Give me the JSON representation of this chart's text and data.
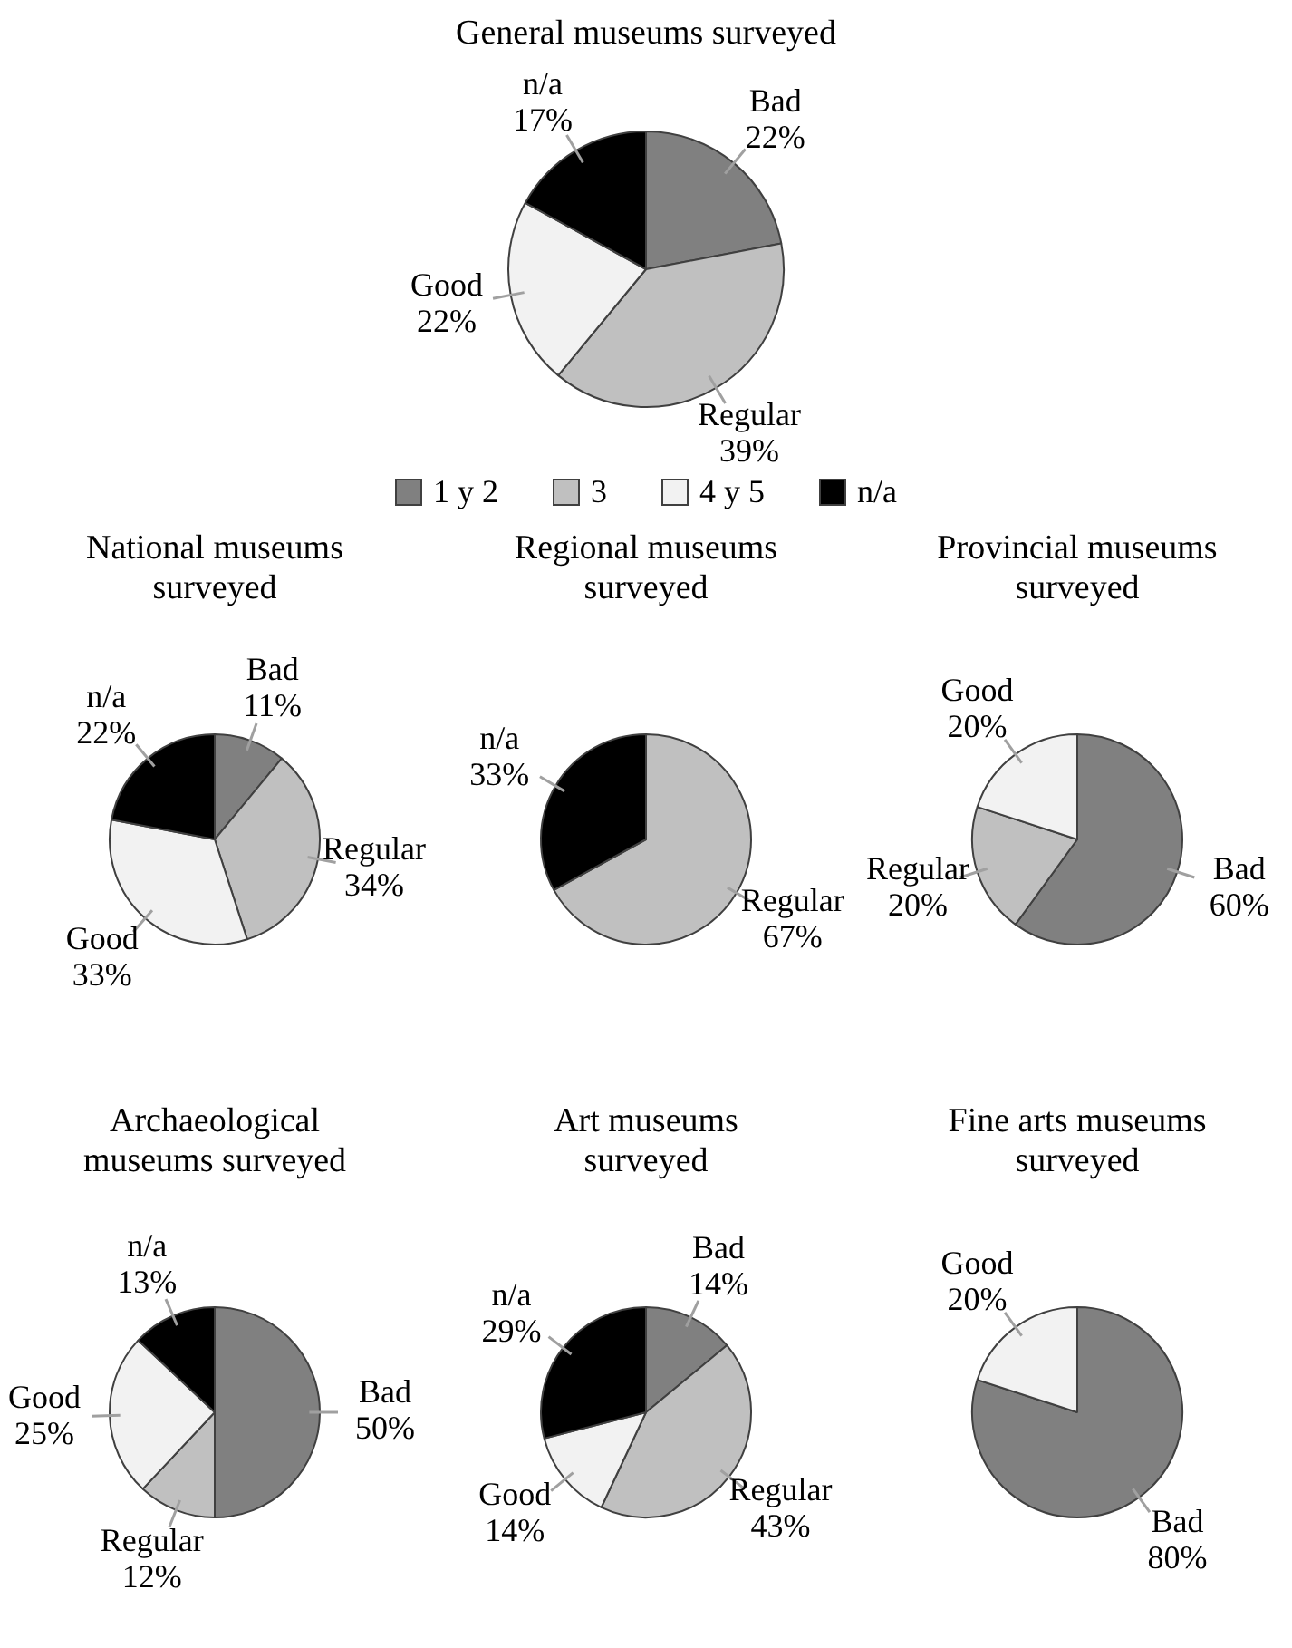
{
  "chart_data": [
    {
      "type": "pie",
      "title": "General museums surveyed",
      "categories": [
        "1 y 2",
        "3",
        "4 y 5",
        "n/a"
      ],
      "values": [
        22,
        39,
        22,
        17
      ],
      "colors": [
        "#808080",
        "#c0c0c0",
        "#f2f2f2",
        "#000000"
      ],
      "value_labels": [
        "Bad 22%",
        "Regular 39%",
        "Good 22%",
        "n/a 17%"
      ],
      "legend": "bottom"
    },
    {
      "type": "pie",
      "title": "National museums surveyed",
      "categories": [
        "Bad",
        "Regular",
        "Good",
        "n/a"
      ],
      "values": [
        11,
        34,
        33,
        22
      ],
      "colors": [
        "#808080",
        "#c0c0c0",
        "#f2f2f2",
        "#000000"
      ],
      "value_labels": [
        "11%",
        "34%",
        "33%",
        "22%"
      ]
    },
    {
      "type": "pie",
      "title": "Regional museums surveyed",
      "categories": [
        null,
        "Regular",
        null,
        "n/a"
      ],
      "values": [
        0,
        67,
        0,
        33
      ],
      "colors": [
        "#808080",
        "#c0c0c0",
        "#f2f2f2",
        "#000000"
      ],
      "value_labels": [
        null,
        "67%",
        null,
        "33%"
      ]
    },
    {
      "type": "pie",
      "title": "Provincial museums surveyed",
      "categories": [
        "Bad",
        "Regular",
        "Good",
        null
      ],
      "values": [
        60,
        20,
        20,
        0
      ],
      "colors": [
        "#808080",
        "#c0c0c0",
        "#f2f2f2",
        "#000000"
      ],
      "value_labels": [
        "60%",
        "20%",
        "20%",
        null
      ]
    },
    {
      "type": "pie",
      "title": "Archaeological museums surveyed",
      "categories": [
        "Bad",
        "Regular",
        "Good",
        "n/a"
      ],
      "values": [
        50,
        12,
        25,
        13
      ],
      "colors": [
        "#808080",
        "#c0c0c0",
        "#f2f2f2",
        "#000000"
      ],
      "value_labels": [
        "50%",
        "12%",
        "25%",
        "13%"
      ]
    },
    {
      "type": "pie",
      "title": "Art museums surveyed",
      "categories": [
        "Bad",
        "Regular",
        "Good",
        "n/a"
      ],
      "values": [
        14,
        43,
        14,
        29
      ],
      "colors": [
        "#808080",
        "#c0c0c0",
        "#f2f2f2",
        "#000000"
      ],
      "value_labels": [
        "14%",
        "43%",
        "14%",
        "29%"
      ]
    },
    {
      "type": "pie",
      "title": "Fine arts museums surveyed",
      "categories": [
        "Bad",
        null,
        "Good",
        null
      ],
      "values": [
        80,
        0,
        20,
        0
      ],
      "colors": [
        "#808080",
        "#c0c0c0",
        "#f2f2f2",
        "#000000"
      ],
      "value_labels": [
        "80%",
        null,
        "20%",
        null
      ]
    }
  ]
}
